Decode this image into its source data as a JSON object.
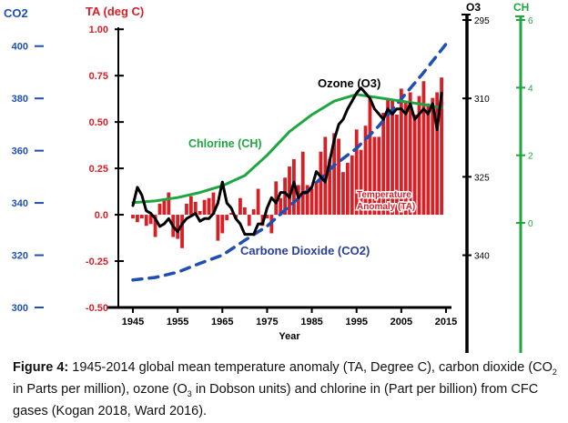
{
  "chart_data": {
    "type": "bar+line",
    "x": {
      "label": "Year",
      "ticks": [
        1945,
        1955,
        1965,
        1975,
        1985,
        1995,
        2005,
        2015
      ],
      "range": [
        1945,
        2015
      ]
    },
    "axes": {
      "co2": {
        "label": "CO2",
        "ticks": [
          300,
          320,
          340,
          360,
          380,
          400
        ],
        "range": [
          300,
          410
        ],
        "side": "left-outer",
        "color": "#1f4fb3"
      },
      "ta": {
        "label": "TA (deg C)",
        "ticks": [
          "-0.50",
          "-0.25",
          "0.0",
          "0.25",
          "0.50",
          "0.75",
          "1.00"
        ],
        "range": [
          -0.5,
          1.05
        ],
        "side": "left-inner",
        "color": "#d81f26"
      },
      "o3": {
        "label": "O3",
        "ticks": [
          295,
          310,
          325,
          340
        ],
        "range": [
          295,
          350
        ],
        "side": "right-inner",
        "inverted": true,
        "color": "#000000"
      },
      "ch": {
        "label": "CH",
        "ticks": [
          0,
          2,
          4,
          6
        ],
        "range": [
          -2.5,
          6
        ],
        "side": "right-outer",
        "color": "#1ea641"
      }
    },
    "series": [
      {
        "name": "Temperature Anomaly (TA)",
        "kind": "bar",
        "axis": "ta",
        "color": "#d81f26",
        "x": [
          1945,
          1946,
          1947,
          1948,
          1949,
          1950,
          1951,
          1952,
          1953,
          1954,
          1955,
          1956,
          1957,
          1958,
          1959,
          1960,
          1961,
          1962,
          1963,
          1964,
          1965,
          1966,
          1967,
          1968,
          1969,
          1970,
          1971,
          1972,
          1973,
          1974,
          1975,
          1976,
          1977,
          1978,
          1979,
          1980,
          1981,
          1982,
          1983,
          1984,
          1985,
          1986,
          1987,
          1988,
          1989,
          1990,
          1991,
          1992,
          1993,
          1994,
          1995,
          1996,
          1997,
          1998,
          1999,
          2000,
          2001,
          2002,
          2003,
          2004,
          2005,
          2006,
          2007,
          2008,
          2009,
          2010,
          2011,
          2012,
          2013,
          2014
        ],
        "values": [
          -0.02,
          -0.04,
          -0.02,
          -0.06,
          -0.05,
          -0.12,
          0.06,
          0.08,
          0.12,
          -0.12,
          -0.13,
          -0.18,
          0.06,
          0.1,
          0.07,
          0.02,
          0.08,
          0.09,
          0.12,
          -0.14,
          -0.1,
          -0.03,
          0.01,
          -0.02,
          0.09,
          0.04,
          -0.06,
          0.03,
          0.14,
          -0.06,
          -0.02,
          -0.1,
          0.18,
          0.09,
          0.2,
          0.26,
          0.3,
          0.16,
          0.34,
          0.16,
          0.14,
          0.18,
          0.34,
          0.42,
          0.3,
          0.44,
          0.41,
          0.23,
          0.28,
          0.32,
          0.46,
          0.35,
          0.48,
          0.64,
          0.42,
          0.42,
          0.55,
          0.63,
          0.62,
          0.54,
          0.68,
          0.61,
          0.66,
          0.54,
          0.64,
          0.72,
          0.6,
          0.63,
          0.66,
          0.74
        ]
      },
      {
        "name": "Carbone Dioxide (CO2)",
        "kind": "line",
        "axis": "co2",
        "color": "#1f4fb3",
        "dash": true,
        "x": [
          1945,
          1950,
          1955,
          1960,
          1965,
          1970,
          1975,
          1980,
          1985,
          1990,
          1995,
          2000,
          2005,
          2010,
          2015
        ],
        "values": [
          310.5,
          311.5,
          313.5,
          316.9,
          320.0,
          325.7,
          331.1,
          338.8,
          346.1,
          354.4,
          360.9,
          369.5,
          379.8,
          389.9,
          400.8
        ]
      },
      {
        "name": "Chlorine (CH)",
        "kind": "line",
        "axis": "ch",
        "color": "#1ea641",
        "x": [
          1945,
          1950,
          1955,
          1960,
          1965,
          1970,
          1975,
          1980,
          1985,
          1990,
          1995,
          2000,
          2005,
          2010,
          2014
        ],
        "values": [
          0.6,
          0.65,
          0.75,
          0.9,
          1.1,
          1.4,
          2.0,
          2.7,
          3.2,
          3.6,
          3.8,
          3.7,
          3.6,
          3.5,
          3.4
        ]
      },
      {
        "name": "Ozone (O3)",
        "kind": "line",
        "axis": "o3",
        "color": "#000000",
        "x": [
          1945,
          1946,
          1947,
          1948,
          1949,
          1950,
          1951,
          1952,
          1953,
          1954,
          1955,
          1956,
          1957,
          1958,
          1959,
          1960,
          1961,
          1962,
          1963,
          1964,
          1965,
          1966,
          1967,
          1968,
          1969,
          1970,
          1971,
          1972,
          1973,
          1974,
          1975,
          1976,
          1977,
          1978,
          1979,
          1980,
          1981,
          1982,
          1983,
          1984,
          1985,
          1986,
          1987,
          1988,
          1989,
          1990,
          1991,
          1992,
          1993,
          1994,
          1995,
          1996,
          1997,
          1998,
          1999,
          2000,
          2001,
          2002,
          2003,
          2004,
          2005,
          2006,
          2007,
          2008,
          2009,
          2010,
          2011,
          2012,
          2013,
          2014
        ],
        "values": [
          330.5,
          327,
          328.5,
          331.5,
          332,
          333,
          334.5,
          334,
          333,
          334.5,
          335.5,
          334,
          333,
          332.5,
          332,
          333.5,
          333,
          333,
          332,
          330,
          326,
          330,
          331,
          333,
          334,
          336,
          336,
          336,
          334,
          334,
          331,
          329,
          330,
          328,
          328,
          329,
          326,
          329,
          328,
          328,
          327,
          324,
          325,
          326,
          322,
          318,
          315,
          314,
          312,
          310.5,
          309,
          308,
          309,
          310,
          312,
          313,
          314,
          312,
          313,
          312,
          312,
          313,
          311,
          314,
          313,
          312,
          313,
          311,
          316,
          309
        ]
      }
    ],
    "annotations": {
      "ozone": "Ozone (O3)",
      "chlorine": "Chlorine (CH)",
      "co2": "Carbone Dioxide (CO2)",
      "ta_line1": "Temperature",
      "ta_line2": "Anomaly (TA)"
    }
  },
  "caption": {
    "label": "Figure 4:",
    "t1": "1945-2014 global mean temperature anomaly (TA, Degree C), carbon dioxide (CO",
    "s1": "2",
    "t2": " in Parts per million), ozone (O",
    "s2": "3",
    "t3": " in Dobson units) and chlorine in (Part per billion) from CFC gases (Kogan 2018, Ward 2016)."
  }
}
